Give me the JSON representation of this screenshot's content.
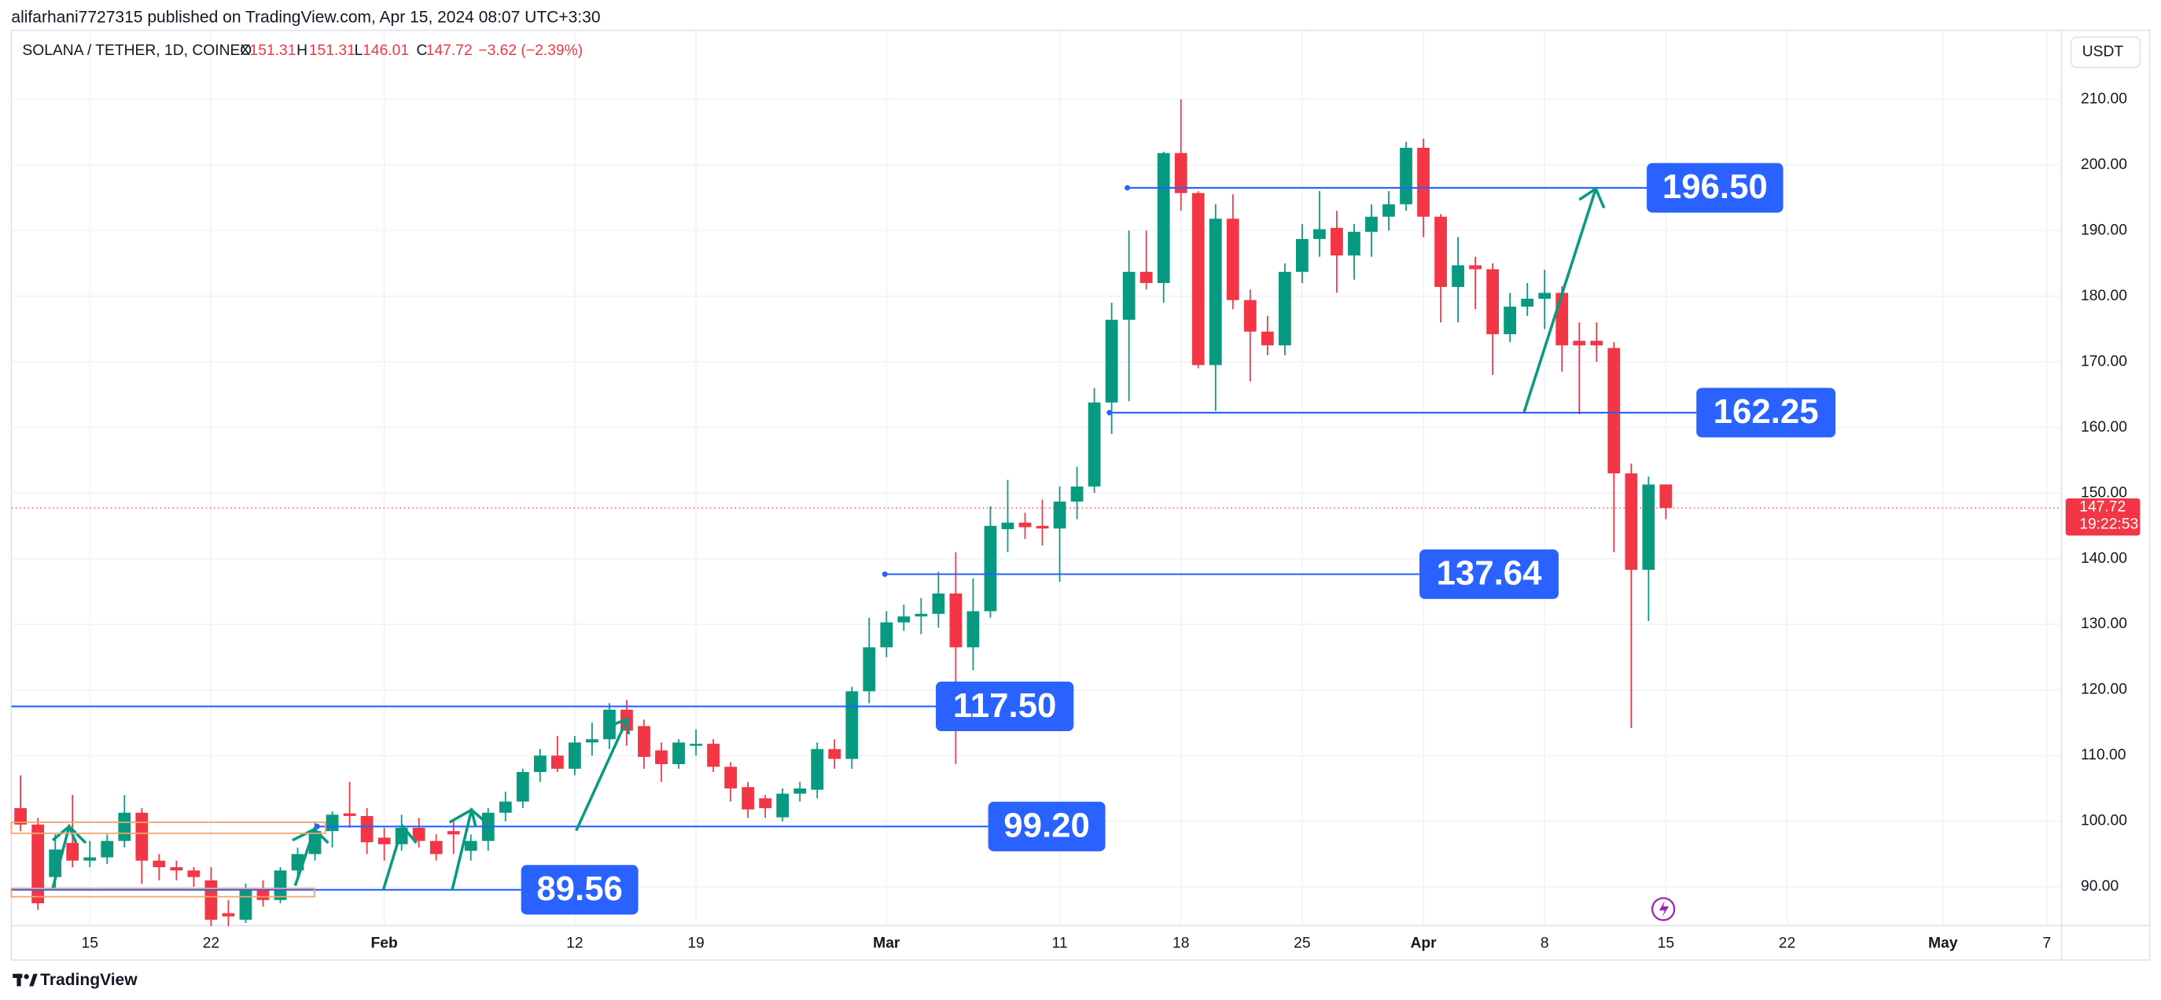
{
  "published": "alifarhani7727315 published on TradingView.com, Apr 15, 2024 08:07 UTC+3:30",
  "brand": "TradingView",
  "chart_data": {
    "type": "candlestick",
    "title": "SOLANA / TETHER, 1D, COINEX",
    "ohlc_labels": [
      "O",
      "H",
      "L",
      "C"
    ],
    "change": "−3.62 (−2.39%)",
    "currency": "USDT",
    "countdown": "19:22:53",
    "up_color": "#089981",
    "down_color": "#f23645",
    "level_color": "#2962ff",
    "arrow_color": "#089981",
    "categories": [
      "Jan 11",
      "Jan 12",
      "Jan 13",
      "Jan 14",
      "Jan 15",
      "Jan 16",
      "Jan 17",
      "Jan 18",
      "Jan 19",
      "Jan 20",
      "Jan 21",
      "Jan 22",
      "Jan 23",
      "Jan 24",
      "Jan 25",
      "Jan 26",
      "Jan 27",
      "Jan 28",
      "Jan 29",
      "Jan 30",
      "Jan 31",
      "Feb 1",
      "Feb 2",
      "Feb 3",
      "Feb 4",
      "Feb 5",
      "Feb 6",
      "Feb 7",
      "Feb 8",
      "Feb 9",
      "Feb 10",
      "Feb 11",
      "Feb 12",
      "Feb 13",
      "Feb 14",
      "Feb 15",
      "Feb 16",
      "Feb 17",
      "Feb 18",
      "Feb 19",
      "Feb 20",
      "Feb 21",
      "Feb 22",
      "Feb 23",
      "Feb 24",
      "Feb 25",
      "Feb 26",
      "Feb 27",
      "Feb 28",
      "Feb 29",
      "Mar 1",
      "Mar 2",
      "Mar 3",
      "Mar 4",
      "Mar 5",
      "Mar 6",
      "Mar 7",
      "Mar 8",
      "Mar 9",
      "Mar 10",
      "Mar 11",
      "Mar 12",
      "Mar 13",
      "Mar 14",
      "Mar 15",
      "Mar 16",
      "Mar 17",
      "Mar 18",
      "Mar 19",
      "Mar 20",
      "Mar 21",
      "Mar 22",
      "Mar 23",
      "Mar 24",
      "Mar 25",
      "Mar 26",
      "Mar 27",
      "Mar 28",
      "Mar 29",
      "Mar 30",
      "Mar 31",
      "Apr 1",
      "Apr 2",
      "Apr 3",
      "Apr 4",
      "Apr 5",
      "Apr 6",
      "Apr 7",
      "Apr 8",
      "Apr 9",
      "Apr 10",
      "Apr 11",
      "Apr 12",
      "Apr 13",
      "Apr 14",
      "Apr 15",
      "Apr 16",
      "Apr 17",
      "Apr 18",
      "Apr 19",
      "Apr 20",
      "Apr 21",
      "Apr 22",
      "Apr 23",
      "Apr 24",
      "Apr 25",
      "Apr 26",
      "Apr 27",
      "Apr 28",
      "Apr 29",
      "Apr 30",
      "May 1",
      "May 2",
      "May 3",
      "May 4",
      "May 5",
      "May 6",
      "May 7",
      "May 8"
    ],
    "open": [
      102,
      99.5,
      91.5,
      96.7,
      94,
      94.5,
      97,
      101.3,
      94,
      93,
      92.5,
      91,
      86,
      85,
      89.5,
      88,
      92.5,
      95,
      98.5,
      101.2,
      100.8,
      97.5,
      96.5,
      99,
      97,
      98.5,
      95.5,
      97,
      101.3,
      103,
      107.5,
      110,
      108,
      112,
      112.5,
      117,
      114.5,
      110.8,
      108.7,
      111.5,
      111.8,
      108.3,
      105.2,
      103.5,
      100.6,
      104.2,
      104.8,
      111,
      109.5,
      119.8,
      126.5,
      130.3,
      131.2,
      131.6,
      134.7,
      126.5,
      132,
      144.5,
      145.5,
      145,
      144.6,
      148.7,
      151,
      163.8,
      176.4,
      183.7,
      182,
      201.8,
      195.7,
      169.5,
      191.8,
      179.4,
      174.6,
      172.5,
      183.7,
      188.7,
      190.4,
      186.2,
      189.8,
      192.1,
      194,
      202.6,
      192.1,
      181.4,
      184.7,
      184.1,
      174.2,
      178.4,
      179.6,
      180.5,
      173.2,
      173.2,
      172.1,
      153,
      138.3,
      151.31,
      null,
      null,
      null,
      null,
      null,
      null,
      null,
      null,
      null,
      null,
      null,
      null,
      null,
      null,
      null,
      null,
      null,
      null,
      null,
      null,
      null,
      null,
      null
    ],
    "high": [
      107,
      100.5,
      98,
      104,
      97,
      98,
      104,
      102,
      95,
      94,
      93,
      93,
      88,
      90.5,
      91,
      93,
      96,
      100,
      101.5,
      106,
      102,
      99,
      101,
      100.5,
      98,
      100,
      98,
      102,
      104.5,
      108,
      111,
      113,
      113,
      115,
      118,
      118.5,
      115.5,
      112,
      112.5,
      114,
      112.5,
      109,
      106,
      104,
      105,
      106,
      112,
      112.5,
      120.5,
      131,
      132,
      133,
      134,
      138,
      141,
      137,
      148,
      152,
      147,
      149,
      151,
      154,
      166,
      179,
      190,
      190,
      202,
      210,
      196,
      194,
      195.5,
      181,
      177,
      185,
      191,
      196,
      193,
      191,
      194,
      196,
      203.5,
      204,
      192.5,
      189,
      186,
      185,
      180.5,
      182,
      184,
      181.5,
      176,
      176,
      173,
      154.5,
      152.5,
      151.31,
      null,
      null,
      null,
      null,
      null,
      null,
      null,
      null,
      null,
      null,
      null,
      null,
      null,
      null,
      null,
      null,
      null,
      null,
      null,
      null,
      null,
      null,
      null
    ],
    "low": [
      98.5,
      86.5,
      89.5,
      93,
      93,
      93.5,
      96,
      90.5,
      91,
      91,
      90,
      84,
      84,
      84.5,
      87,
      87.5,
      91,
      94,
      96,
      99,
      95,
      94,
      95.5,
      96,
      94,
      95,
      94,
      95.5,
      100,
      102,
      106,
      107.5,
      107,
      110,
      111,
      111.5,
      108,
      106,
      108,
      110,
      107.5,
      103,
      100.5,
      100.5,
      100,
      103,
      103.5,
      108,
      108,
      118,
      125,
      129,
      128.5,
      129.5,
      108.7,
      123,
      131,
      141,
      143,
      142,
      136.5,
      146,
      150,
      159,
      164,
      181,
      179,
      193,
      169,
      162.5,
      178,
      167,
      171,
      171,
      182,
      186,
      180.5,
      182.5,
      186,
      190,
      193,
      189,
      176,
      176,
      178,
      168,
      173,
      177,
      175,
      168.5,
      162,
      170,
      141,
      114.2,
      130.5,
      146.01,
      null,
      null,
      null,
      null,
      null,
      null,
      null,
      null,
      null,
      null,
      null,
      null,
      null,
      null,
      null,
      null,
      null,
      null,
      null,
      null,
      null,
      null,
      null
    ],
    "close": [
      99.5,
      87.5,
      95.7,
      94,
      94.5,
      97,
      101.3,
      94,
      93,
      92.5,
      91.5,
      85,
      85.5,
      89.5,
      88,
      92.5,
      95,
      98.5,
      101,
      100.8,
      96.8,
      96.5,
      99,
      97,
      95,
      98,
      97,
      101.3,
      103,
      107.5,
      110,
      108,
      112,
      112.5,
      117,
      113.8,
      109.8,
      108.7,
      112,
      111.8,
      108.3,
      105,
      101.8,
      102,
      104.2,
      105,
      111,
      109.5,
      119.8,
      126.5,
      130.3,
      131.2,
      131.6,
      134.7,
      126.5,
      132,
      145,
      145.5,
      144.8,
      144.6,
      148.7,
      151,
      163.8,
      176.4,
      183.7,
      182,
      201.8,
      195.7,
      169.5,
      191.8,
      179.4,
      174.6,
      172.5,
      183.7,
      188.7,
      190.2,
      186.2,
      189.8,
      192.1,
      194,
      202.6,
      192.1,
      181.4,
      184.7,
      184.1,
      174.2,
      178.4,
      179.6,
      180.5,
      172.5,
      172.5,
      172.5,
      153,
      138.3,
      151.3,
      147.72,
      null,
      null,
      null,
      null,
      null,
      null,
      null,
      null,
      null,
      null,
      null,
      null,
      null,
      null,
      null,
      null,
      null,
      null,
      null,
      null,
      null,
      null,
      null
    ],
    "ylim": [
      84.1,
      220.5
    ],
    "yticks": [
      {
        "value": 90,
        "label": "90.00"
      },
      {
        "value": 100,
        "label": "100.00"
      },
      {
        "value": 110,
        "label": "110.00"
      },
      {
        "value": 120,
        "label": "120.00"
      },
      {
        "value": 130,
        "label": "130.00"
      },
      {
        "value": 140,
        "label": "140.00"
      },
      {
        "value": 150,
        "label": "150.00"
      },
      {
        "value": 160,
        "label": "160.00"
      },
      {
        "value": 170,
        "label": "170.00"
      },
      {
        "value": 180,
        "label": "180.00"
      },
      {
        "value": 190,
        "label": "190.00"
      },
      {
        "value": 200,
        "label": "200.00"
      },
      {
        "value": 210,
        "label": "210.00"
      }
    ],
    "xticks": [
      {
        "value": "Jan 15",
        "label": "15"
      },
      {
        "value": "Jan 22",
        "label": "22"
      },
      {
        "value": "Feb 1",
        "label": "Feb"
      },
      {
        "value": "Feb 12",
        "label": "12"
      },
      {
        "value": "Feb 19",
        "label": "19"
      },
      {
        "value": "Mar 1",
        "label": "Mar"
      },
      {
        "value": "Mar 11",
        "label": "11"
      },
      {
        "value": "Mar 18",
        "label": "18"
      },
      {
        "value": "Mar 25",
        "label": "25"
      },
      {
        "value": "Apr 1",
        "label": "Apr"
      },
      {
        "value": "Apr 8",
        "label": "8"
      },
      {
        "value": "Apr 15",
        "label": "15"
      },
      {
        "value": "Apr 22",
        "label": "22"
      },
      {
        "value": "May 1",
        "label": "May"
      },
      {
        "value": "May 7",
        "label": "7"
      }
    ],
    "grid": true,
    "levels": [
      {
        "value": 196.5,
        "label": "196.50"
      },
      {
        "value": 162.25,
        "label": "162.25"
      },
      {
        "value": 137.64,
        "label": "137.64"
      },
      {
        "value": 117.5,
        "label": "117.50"
      },
      {
        "value": 99.2,
        "label": "99.20"
      },
      {
        "value": 89.56,
        "label": "89.56"
      }
    ]
  }
}
